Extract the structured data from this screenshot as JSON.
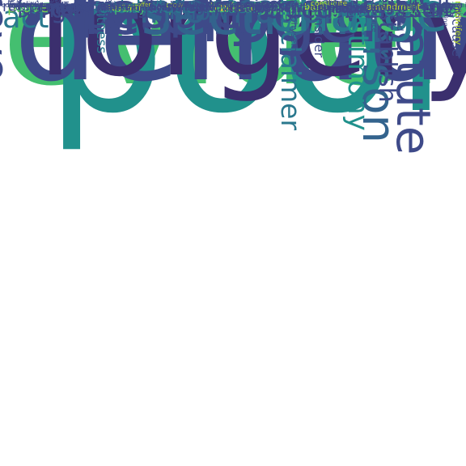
{
  "background": "#ffffff",
  "palette": {
    "dark_indigo": "#3b2f6e",
    "indigo": "#3e4a89",
    "slate_blue": "#33638d",
    "teal_blue": "#2a788e",
    "teal": "#21918c",
    "green_teal": "#22a884",
    "green": "#44bf70",
    "light_green": "#7ad151",
    "yellow_green": "#bddf26",
    "yellow": "#fde725"
  },
  "words": [
    {
      "text": "evidence",
      "color": "green"
    },
    {
      "text": "pool",
      "color": "teal"
    },
    {
      "text": "defraud",
      "color": "indigo"
    },
    {
      "text": "forgery",
      "color": "dark_indigo"
    },
    {
      "text": "testify",
      "color": "indigo"
    },
    {
      "text": "rogers",
      "color": "indigo"
    },
    {
      "text": "person",
      "color": "slate_blue"
    },
    {
      "text": "statute",
      "color": "indigo"
    },
    {
      "text": "reye",
      "color": "indigo"
    },
    {
      "text": "intent",
      "color": "indigo"
    },
    {
      "text": "section",
      "color": "slate_blue"
    },
    {
      "text": "check",
      "color": "green"
    },
    {
      "text": "charge",
      "color": "teal_blue"
    },
    {
      "text": "people",
      "color": "indigo"
    },
    {
      "text": "act",
      "color": "teal_blue"
    },
    {
      "text": "information",
      "color": "slate_blue"
    },
    {
      "text": "document",
      "color": "indigo"
    },
    {
      "text": "establish",
      "color": "indigo"
    },
    {
      "text": "testimony",
      "color": "teal"
    },
    {
      "text": "disclaimer",
      "color": "teal_blue"
    },
    {
      "text": "forge",
      "color": "indigo"
    },
    {
      "text": "jury",
      "color": "indigo"
    },
    {
      "text": "issue",
      "color": "indigo"
    },
    {
      "text": "law",
      "color": "indigo"
    },
    {
      "text": "damage",
      "color": "indigo"
    },
    {
      "text": "surname",
      "color": "indigo"
    },
    {
      "text": "defense",
      "color": "green"
    },
    {
      "text": "result",
      "color": "indigo"
    },
    {
      "text": "know",
      "color": "slate_blue"
    },
    {
      "text": "conduct",
      "color": "indigo"
    },
    {
      "text": "motion",
      "color": "teal_blue"
    },
    {
      "text": "instrument",
      "color": "indigo"
    },
    {
      "text": "claim",
      "color": "indigo"
    },
    {
      "text": "allege",
      "color": "indigo"
    },
    {
      "text": "fail",
      "color": "indigo"
    },
    {
      "text": "action",
      "color": "indigo"
    },
    {
      "text": "bank",
      "color": "yellow"
    },
    {
      "text": "right",
      "color": "indigo"
    },
    {
      "text": "base",
      "color": "indigo"
    },
    {
      "text": "crime",
      "color": "teal_blue"
    },
    {
      "text": "indictment",
      "color": "teal_blue"
    },
    {
      "text": "inhalation",
      "color": "teal_blue"
    },
    {
      "text": "swimming",
      "color": "green"
    },
    {
      "text": "consider",
      "color": "indigo"
    },
    {
      "text": "because",
      "color": "indigo"
    },
    {
      "text": "counsel",
      "color": "indigo"
    },
    {
      "text": "ch",
      "color": "indigo"
    },
    {
      "text": "witness",
      "color": "teal_blue"
    },
    {
      "text": "argue",
      "color": "indigo"
    },
    {
      "text": "determine",
      "color": "teal_blue"
    },
    {
      "text": "present",
      "color": "green"
    },
    {
      "text": "prove",
      "color": "light_green"
    },
    {
      "text": "follow",
      "color": "teal_blue"
    },
    {
      "text": "deny",
      "color": "teal_blue"
    },
    {
      "text": "give",
      "color": "indigo"
    },
    {
      "text": "tell",
      "color": "indigo"
    },
    {
      "text": "note",
      "color": "teal_blue"
    },
    {
      "text": "conclude",
      "color": "teal_blue"
    },
    {
      "text": "derivative",
      "color": "green"
    },
    {
      "text": "offense",
      "color": "indigo"
    },
    {
      "text": "provide",
      "color": "teal_blue"
    },
    {
      "text": "deliver",
      "color": "teal_blue"
    },
    {
      "text": "par",
      "color": "indigo"
    },
    {
      "text": "take",
      "color": "indigo"
    },
    {
      "text": "require",
      "color": "indigo"
    },
    {
      "text": "dive",
      "color": "green"
    },
    {
      "text": "party",
      "color": "green"
    },
    {
      "text": "support",
      "color": "indigo"
    },
    {
      "text": "diving",
      "color": "indigo"
    },
    {
      "text": "argument",
      "color": "indigo"
    },
    {
      "text": "obscenity",
      "color": "indigo"
    },
    {
      "text": "balloon",
      "color": "green"
    },
    {
      "text": "statement",
      "color": "indigo"
    },
    {
      "text": "cause",
      "color": "indigo"
    },
    {
      "text": "work",
      "color": "indigo"
    },
    {
      "text": "award",
      "color": "indigo"
    },
    {
      "text": "return",
      "color": "indigo"
    },
    {
      "text": "injury",
      "color": "indigo"
    },
    {
      "text": "include",
      "color": "indigo"
    },
    {
      "text": "apply",
      "color": "indigo"
    },
    {
      "text": "rule",
      "color": "indigo"
    },
    {
      "text": "count",
      "color": "indigo"
    },
    {
      "text": "car",
      "color": "indigo"
    },
    {
      "text": "circuit",
      "color": "yellow_green"
    },
    {
      "text": "disease",
      "color": "indigo"
    },
    {
      "text": "sustain",
      "color": "yellow_green"
    },
    {
      "text": "defect",
      "color": "indigo"
    },
    {
      "text": "suction",
      "color": "indigo"
    },
    {
      "text": "office",
      "color": "indigo"
    },
    {
      "text": "contend",
      "color": "indigo"
    },
    {
      "text": "basis",
      "color": "yellow_green"
    },
    {
      "text": "1977",
      "color": "indigo"
    },
    {
      "text": "element",
      "color": "indigo"
    },
    {
      "text": "record",
      "color": "indigo"
    },
    {
      "text": "say",
      "color": "indigo"
    },
    {
      "text": "go",
      "color": "indigo"
    },
    {
      "text": "midwifery",
      "color": "yellow_green"
    },
    {
      "text": "should",
      "color": "indigo"
    },
    {
      "text": "heartbeat",
      "color": "indigo"
    },
    {
      "text": "allow",
      "color": "indigo"
    },
    {
      "text": "day",
      "color": "indigo"
    },
    {
      "text": "conclusion",
      "color": "indigo"
    },
    {
      "text": "review",
      "color": "indigo"
    },
    {
      "text": "verdict",
      "color": "indigo"
    },
    {
      "text": "arrest",
      "color": "indigo"
    },
    {
      "text": "indicate",
      "color": "indigo"
    },
    {
      "text": "language",
      "color": "indigo"
    },
    {
      "text": "change",
      "color": "indigo"
    },
    {
      "text": "hearing",
      "color": "indigo"
    },
    {
      "text": "identify",
      "color": "indigo"
    },
    {
      "text": "year",
      "color": "indigo"
    },
    {
      "text": "amendment",
      "color": "yellow_green"
    },
    {
      "text": "view",
      "color": "indigo"
    },
    {
      "text": "attempt",
      "color": "indigo"
    },
    {
      "text": "conviction",
      "color": "indigo"
    },
    {
      "text": "constitute",
      "color": "yellow_green"
    },
    {
      "text": "allegation",
      "color": "indigo"
    },
    {
      "text": "suffer",
      "color": "indigo"
    },
    {
      "text": "card",
      "color": "indigo"
    },
    {
      "text": "set",
      "color": "indigo"
    },
    {
      "text": "limit",
      "color": "indigo"
    },
    {
      "text": "date",
      "color": "indigo"
    },
    {
      "text": "duty",
      "color": "indigo"
    },
    {
      "text": "agree",
      "color": "indigo"
    },
    {
      "text": "proof",
      "color": "indigo"
    },
    {
      "text": "describe",
      "color": "indigo"
    },
    {
      "text": "leave",
      "color": "indigo"
    },
    {
      "text": "dismiss",
      "color": "indigo"
    },
    {
      "text": "amend",
      "color": "indigo"
    },
    {
      "text": "ground",
      "color": "indigo"
    },
    {
      "text": "enter",
      "color": "indigo"
    },
    {
      "text": "interest",
      "color": "indigo"
    },
    {
      "text": "loss",
      "color": "indigo"
    },
    {
      "text": "appear",
      "color": "indigo"
    },
    {
      "text": "cite",
      "color": "indigo"
    },
    {
      "text": "bar",
      "color": "indigo"
    },
    {
      "text": "crow",
      "color": "yellow_green"
    },
    {
      "text": "permit",
      "color": "indigo"
    },
    {
      "text": "file",
      "color": "indigo"
    },
    {
      "text": "accord",
      "color": "indigo"
    },
    {
      "text": "failure",
      "color": "indigo"
    },
    {
      "text": "misconduct",
      "color": "indigo"
    },
    {
      "text": "use",
      "color": "indigo"
    },
    {
      "text": "show",
      "color": "indigo"
    },
    {
      "text": "emphysema",
      "color": "indigo"
    },
    {
      "text": "involve",
      "color": "indigo"
    },
    {
      "text": "reason",
      "color": "indigo"
    },
    {
      "text": "admit",
      "color": "indigo"
    },
    {
      "text": "authority",
      "color": "indigo"
    },
    {
      "text": "sentence",
      "color": "indigo"
    },
    {
      "text": "discretion",
      "color": "indigo"
    },
    {
      "text": "assert",
      "color": "indigo"
    },
    {
      "text": "contradiction",
      "color": "indigo"
    },
    {
      "text": "violation",
      "color": "indigo"
    },
    {
      "text": "police",
      "color": "indigo"
    },
    {
      "text": "believe",
      "color": "indigo"
    },
    {
      "text": "reverse",
      "color": "indigo"
    },
    {
      "text": "kelte",
      "color": "indigo"
    },
    {
      "text": "receive",
      "color": "indigo"
    },
    {
      "text": "liability",
      "color": "indigo"
    },
    {
      "text": "offer",
      "color": "yellow_green"
    },
    {
      "text": "finding",
      "color": "indigo"
    },
    {
      "text": "complaint",
      "color": "indigo"
    },
    {
      "text": "condition",
      "color": "indigo"
    },
    {
      "text": "err",
      "color": "indigo"
    },
    {
      "text": "cross",
      "color": "indigo"
    },
    {
      "text": "commit",
      "color": "indigo"
    },
    {
      "text": "ask",
      "color": "indigo"
    },
    {
      "text": "lifeguard",
      "color": "indigo"
    },
    {
      "text": "victim",
      "color": "indigo"
    },
    {
      "text": "raise",
      "color": "indigo"
    },
    {
      "text": "birth",
      "color": "indigo"
    },
    {
      "text": "examination",
      "color": "indigo"
    },
    {
      "text": "area",
      "color": "indigo"
    },
    {
      "text": "occur",
      "color": "indigo"
    },
    {
      "text": "make",
      "color": "indigo"
    },
    {
      "text": "number",
      "color": "indigo"
    },
    {
      "text": "concern",
      "color": "indigo"
    },
    {
      "text": "pay",
      "color": "indigo"
    },
    {
      "text": "sole",
      "color": "indigo"
    },
    {
      "text": "have",
      "color": "indigo"
    },
    {
      "text": "concur",
      "color": "indigo"
    },
    {
      "text": "name",
      "color": "indigo"
    },
    {
      "text": "alter",
      "color": "indigo"
    },
    {
      "text": "majority",
      "color": "indigo"
    },
    {
      "text": "holding",
      "color": "indigo"
    }
  ]
}
